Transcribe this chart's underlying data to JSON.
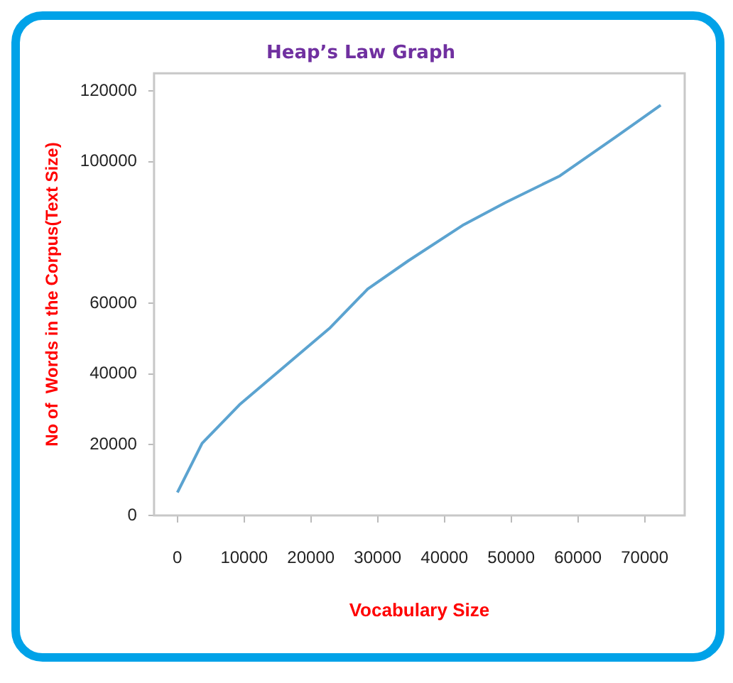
{
  "chart_data": {
    "type": "line",
    "title": "Heap’s Law Graph",
    "xlabel": "Vocabulary Size",
    "ylabel": "No of  Words in the Corpus(Text Size)",
    "x": [
      0,
      3700,
      9300,
      16100,
      22900,
      28500,
      34600,
      42900,
      49100,
      57300,
      65600,
      72400
    ],
    "series": [
      {
        "color": "#5ba3d0",
        "values": [
          6500,
          20400,
          31300,
          42200,
          53100,
          64000,
          72000,
          82200,
          88400,
          96000,
          106900,
          116000
        ]
      }
    ],
    "xlim": [
      -3500,
      76000
    ],
    "xticks": [
      0,
      10000,
      20000,
      30000,
      40000,
      50000,
      60000,
      70000
    ],
    "ylim": [
      0,
      125000
    ],
    "yticks": [
      0,
      20000,
      40000,
      60000,
      100000,
      120000
    ],
    "grid": false,
    "legend": false,
    "marker": "none",
    "line_style": "solid"
  }
}
